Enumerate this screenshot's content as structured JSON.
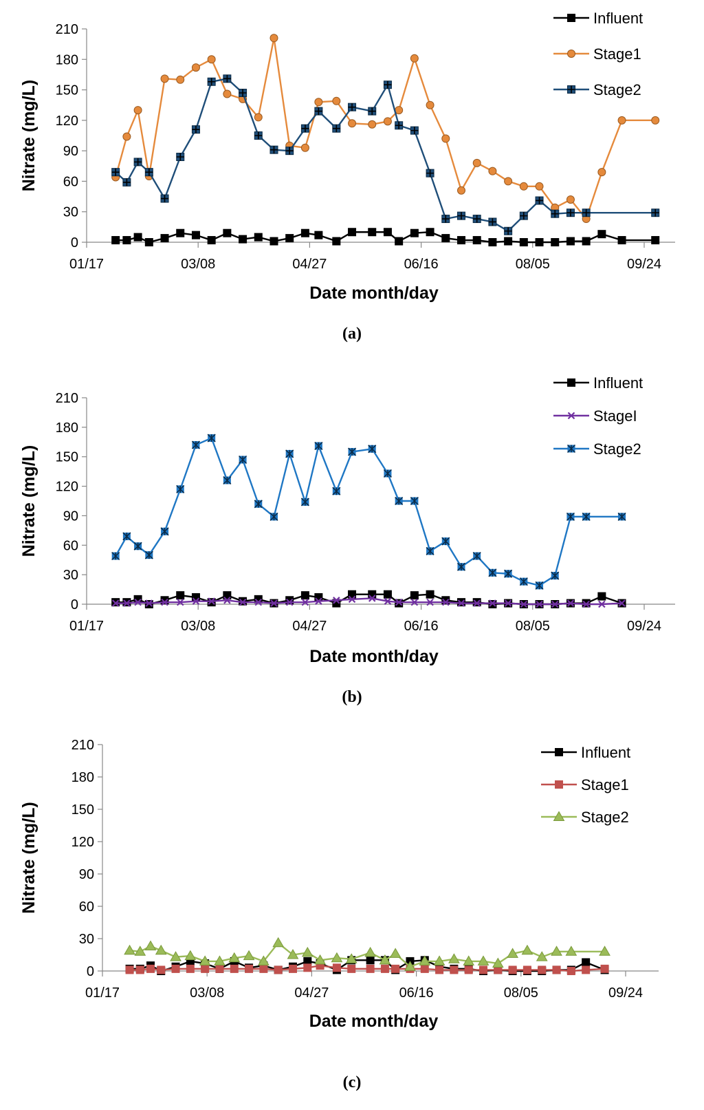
{
  "chart_data": [
    {
      "type": "line",
      "panel_label": "(a)",
      "xlabel": "Date month/day",
      "ylabel": "Nitrate (mg/L)",
      "ylim": [
        0,
        210
      ],
      "yticks": [
        0,
        30,
        60,
        90,
        120,
        150,
        180,
        210
      ],
      "xlim": [
        0,
        250
      ],
      "xticks": [
        {
          "day": 0,
          "label": "01/17"
        },
        {
          "day": 50,
          "label": "03/08"
        },
        {
          "day": 100,
          "label": "04/27"
        },
        {
          "day": 150,
          "label": "06/16"
        },
        {
          "day": 200,
          "label": "08/05"
        },
        {
          "day": 250,
          "label": "09/24"
        }
      ],
      "legend_position": "top-right",
      "series": [
        {
          "name": "Influent",
          "color": "#000000",
          "marker": "square",
          "x": [
            13,
            18,
            23,
            28,
            35,
            42,
            49,
            56,
            63,
            70,
            77,
            84,
            91,
            98,
            104,
            112,
            119,
            128,
            135,
            140,
            147,
            154,
            161,
            168,
            175,
            182,
            189,
            196,
            203,
            210,
            217,
            224,
            231,
            240,
            255
          ],
          "y": [
            2,
            2,
            5,
            0,
            4,
            9,
            7,
            2,
            9,
            3,
            5,
            1,
            4,
            9,
            7,
            1,
            10,
            10,
            10,
            1,
            9,
            10,
            4,
            2,
            2,
            0,
            1,
            0,
            0,
            0,
            1,
            1,
            8,
            2,
            2
          ]
        },
        {
          "name": "Stage1",
          "color": "#E58A3C",
          "marker": "circle",
          "x": [
            13,
            18,
            23,
            28,
            35,
            42,
            49,
            56,
            63,
            70,
            77,
            84,
            91,
            98,
            104,
            112,
            119,
            128,
            135,
            140,
            147,
            154,
            161,
            168,
            175,
            182,
            189,
            196,
            203,
            210,
            217,
            224,
            231,
            240,
            255
          ],
          "y": [
            64,
            104,
            130,
            65,
            161,
            160,
            172,
            180,
            146,
            141,
            123,
            201,
            95,
            93,
            138,
            139,
            117,
            116,
            119,
            130,
            181,
            135,
            102,
            51,
            78,
            70,
            60,
            55,
            55,
            34,
            42,
            23,
            69,
            120,
            120
          ]
        },
        {
          "name": "Stage2",
          "color": "#1F4E79",
          "marker": "plus",
          "x": [
            13,
            18,
            23,
            28,
            35,
            42,
            49,
            56,
            63,
            70,
            77,
            84,
            91,
            98,
            104,
            112,
            119,
            128,
            135,
            140,
            147,
            154,
            161,
            168,
            175,
            182,
            189,
            196,
            203,
            210,
            217,
            224,
            255
          ],
          "y": [
            69,
            59,
            79,
            69,
            43,
            84,
            111,
            158,
            161,
            147,
            105,
            91,
            90,
            112,
            129,
            112,
            133,
            129,
            155,
            115,
            110,
            68,
            23,
            26,
            23,
            20,
            11,
            26,
            41,
            28,
            29,
            29,
            29
          ]
        }
      ]
    },
    {
      "type": "line",
      "panel_label": "(b)",
      "xlabel": "Date month/day",
      "ylabel": "Nitrate (mg/L)",
      "ylim": [
        0,
        210
      ],
      "yticks": [
        0,
        30,
        60,
        90,
        120,
        150,
        180,
        210
      ],
      "xlim": [
        0,
        250
      ],
      "xticks": [
        {
          "day": 0,
          "label": "01/17"
        },
        {
          "day": 50,
          "label": "03/08"
        },
        {
          "day": 100,
          "label": "04/27"
        },
        {
          "day": 150,
          "label": "06/16"
        },
        {
          "day": 200,
          "label": "08/05"
        },
        {
          "day": 250,
          "label": "09/24"
        }
      ],
      "legend_position": "top-right",
      "series": [
        {
          "name": "Influent",
          "color": "#000000",
          "marker": "square",
          "x": [
            13,
            18,
            23,
            28,
            35,
            42,
            49,
            56,
            63,
            70,
            77,
            84,
            91,
            98,
            104,
            112,
            119,
            128,
            135,
            140,
            147,
            154,
            161,
            168,
            175,
            182,
            189,
            196,
            203,
            210,
            217,
            224,
            231,
            240
          ],
          "y": [
            2,
            2,
            5,
            0,
            4,
            9,
            7,
            2,
            9,
            3,
            5,
            1,
            4,
            9,
            7,
            1,
            10,
            10,
            10,
            1,
            9,
            10,
            4,
            2,
            2,
            0,
            1,
            0,
            0,
            0,
            1,
            1,
            8,
            1
          ]
        },
        {
          "name": "StageI",
          "color": "#7030A0",
          "marker": "x",
          "x": [
            13,
            18,
            23,
            28,
            35,
            42,
            49,
            56,
            63,
            70,
            77,
            84,
            91,
            98,
            104,
            112,
            119,
            128,
            135,
            140,
            147,
            154,
            161,
            168,
            175,
            182,
            189,
            196,
            203,
            210,
            217,
            224,
            231,
            240
          ],
          "y": [
            1,
            1,
            2,
            1,
            2,
            2,
            3,
            3,
            4,
            2,
            2,
            1,
            2,
            2,
            3,
            4,
            5,
            6,
            3,
            2,
            2,
            2,
            2,
            1,
            1,
            1,
            1,
            0,
            0,
            0,
            1,
            0,
            0,
            1
          ]
        },
        {
          "name": "Stage2",
          "color": "#1F77C4",
          "marker": "star",
          "x": [
            13,
            18,
            23,
            28,
            35,
            42,
            49,
            56,
            63,
            70,
            77,
            84,
            91,
            98,
            104,
            112,
            119,
            128,
            135,
            140,
            147,
            154,
            161,
            168,
            175,
            182,
            189,
            196,
            203,
            210,
            217,
            224,
            240
          ],
          "y": [
            49,
            69,
            59,
            50,
            74,
            117,
            162,
            169,
            126,
            147,
            102,
            89,
            153,
            104,
            161,
            115,
            155,
            158,
            133,
            105,
            105,
            54,
            64,
            38,
            49,
            32,
            31,
            23,
            19,
            29,
            89,
            89,
            89
          ]
        }
      ]
    },
    {
      "type": "line",
      "panel_label": "(c)",
      "xlabel": "Date month/day",
      "ylabel": "Nitrate (mg/L)",
      "ylim": [
        0,
        210
      ],
      "yticks": [
        0,
        30,
        60,
        90,
        120,
        150,
        180,
        210
      ],
      "xlim": [
        0,
        250
      ],
      "xticks": [
        {
          "day": 0,
          "label": "01/17"
        },
        {
          "day": 50,
          "label": "03/08"
        },
        {
          "day": 100,
          "label": "04/27"
        },
        {
          "day": 150,
          "label": "06/16"
        },
        {
          "day": 200,
          "label": "08/05"
        },
        {
          "day": 250,
          "label": "09/24"
        }
      ],
      "legend_position": "top-right",
      "series": [
        {
          "name": "Influent",
          "color": "#000000",
          "marker": "square",
          "x": [
            13,
            18,
            23,
            28,
            35,
            42,
            49,
            56,
            63,
            70,
            77,
            84,
            91,
            98,
            104,
            112,
            119,
            128,
            135,
            140,
            147,
            154,
            161,
            168,
            175,
            182,
            189,
            196,
            203,
            210,
            217,
            224,
            231,
            240
          ],
          "y": [
            2,
            2,
            5,
            0,
            4,
            9,
            7,
            2,
            9,
            3,
            5,
            1,
            4,
            9,
            7,
            1,
            10,
            10,
            10,
            1,
            9,
            10,
            4,
            2,
            2,
            0,
            1,
            0,
            0,
            0,
            1,
            1,
            8,
            1
          ]
        },
        {
          "name": "Stage1",
          "color": "#C0504D",
          "marker": "square",
          "x": [
            13,
            18,
            23,
            28,
            35,
            42,
            49,
            56,
            63,
            70,
            77,
            84,
            91,
            98,
            104,
            112,
            119,
            128,
            135,
            140,
            147,
            154,
            161,
            168,
            175,
            182,
            189,
            196,
            203,
            210,
            217,
            224,
            231,
            240
          ],
          "y": [
            1,
            1,
            2,
            1,
            2,
            2,
            2,
            2,
            2,
            2,
            2,
            1,
            2,
            3,
            5,
            3,
            2,
            2,
            2,
            2,
            2,
            2,
            1,
            1,
            1,
            1,
            1,
            1,
            1,
            1,
            1,
            0,
            1,
            2
          ]
        },
        {
          "name": "Stage2",
          "color": "#9BBB59",
          "marker": "triangle",
          "x": [
            13,
            18,
            23,
            28,
            35,
            42,
            49,
            56,
            63,
            70,
            77,
            84,
            91,
            98,
            104,
            112,
            119,
            128,
            135,
            140,
            147,
            154,
            161,
            168,
            175,
            182,
            189,
            196,
            203,
            210,
            217,
            224,
            240
          ],
          "y": [
            19,
            18,
            23,
            19,
            13,
            14,
            9,
            9,
            12,
            14,
            9,
            26,
            15,
            17,
            10,
            12,
            11,
            17,
            10,
            16,
            4,
            9,
            9,
            11,
            9,
            9,
            7,
            16,
            19,
            13,
            18,
            18,
            18
          ]
        }
      ]
    }
  ]
}
